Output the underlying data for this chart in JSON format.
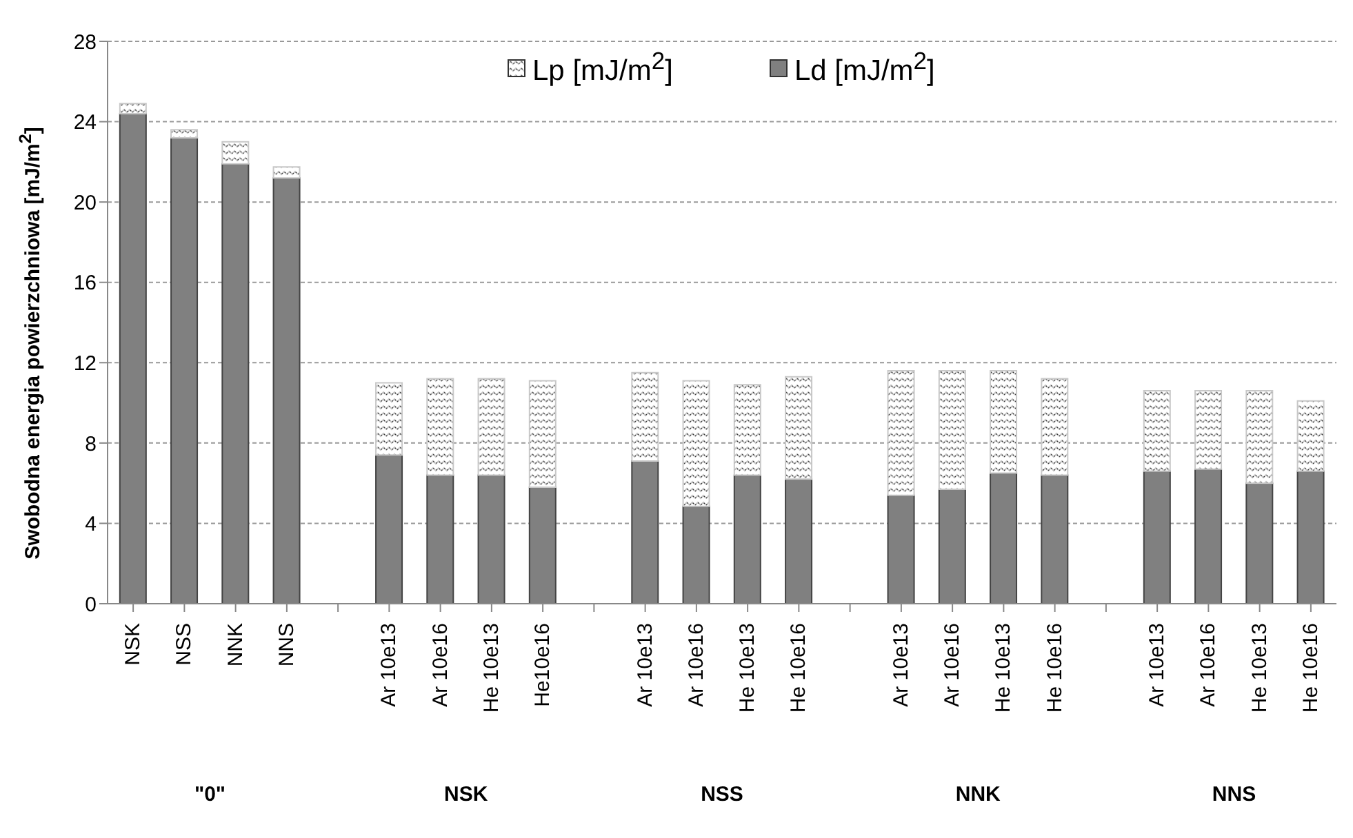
{
  "chart_data": {
    "type": "bar",
    "stacked": true,
    "ylabel": "Swobodna energia powierzchniowa [mJ/m$^{2}$]",
    "categories": [
      "NSK",
      "NSS",
      "NNK",
      "NNS",
      null,
      "Ar 10e13",
      "Ar 10e16",
      "He 10e13",
      "He10e16",
      null,
      "Ar 10e13",
      "Ar 10e16",
      "He 10e13",
      "He 10e16",
      null,
      "Ar 10e13",
      "Ar 10e16",
      "He 10e13",
      "He 10e16",
      null,
      "Ar 10e13",
      "Ar 10e16",
      "He 10e13",
      "He 10e16"
    ],
    "series": [
      {
        "name": "Ld [mJ/m$^{2}$]",
        "color": "#808080",
        "values": [
          24.4,
          23.2,
          21.9,
          21.2,
          null,
          7.4,
          6.4,
          6.4,
          5.8,
          null,
          7.1,
          4.85,
          6.4,
          6.2,
          null,
          5.4,
          5.7,
          6.5,
          6.4,
          null,
          6.6,
          6.7,
          6.0,
          6.6
        ]
      },
      {
        "name": "Lp [mJ/m$^{2}$]",
        "color": "#c8c8c8",
        "values": [
          0.5,
          0.4,
          1.1,
          0.55,
          null,
          3.6,
          4.8,
          4.8,
          5.3,
          null,
          4.4,
          6.25,
          4.5,
          5.1,
          null,
          6.2,
          5.9,
          5.1,
          4.8,
          null,
          4.0,
          3.9,
          4.6,
          3.5
        ]
      }
    ],
    "ylim": [
      0,
      28
    ],
    "yticks": [
      0,
      4,
      8,
      12,
      16,
      20,
      24,
      28
    ],
    "grid": "y",
    "legend": "top",
    "annotations": [
      "\"0\"",
      "NSK",
      "NSS",
      "NNK",
      "NNS"
    ]
  }
}
